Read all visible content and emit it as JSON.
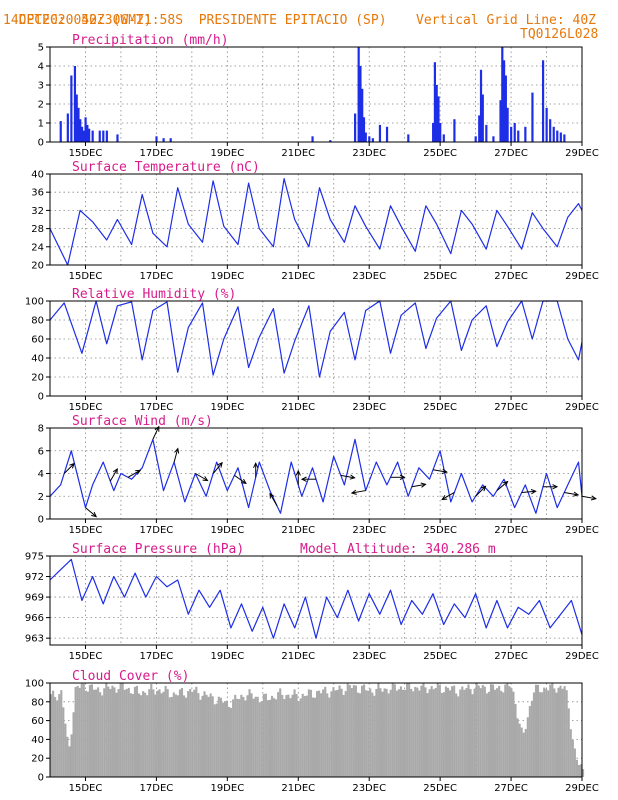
{
  "header": {
    "source": "CPTEC:",
    "coords": "052:30W-21:58S",
    "station": "PRESIDENTE EPITACIO (SP)",
    "init": "14DEC2020 40Z (GMT)",
    "grid_note": "Vertical Grid Line: 40Z",
    "code": "TQ0126L028"
  },
  "colors": {
    "header": "#e8780a",
    "title": "#d81b8c",
    "line": "#1e2ee6",
    "bar": "#1e2ee6",
    "cloud": "#a9a9a9",
    "arrow": "#000000"
  },
  "x_axis": {
    "labels": [
      "15DEC",
      "17DEC",
      "19DEC",
      "21DEC",
      "23DEC",
      "25DEC",
      "27DEC",
      "29DEC"
    ],
    "label_days": [
      15,
      17,
      19,
      21,
      23,
      25,
      27,
      29
    ],
    "start_day": 14,
    "end_day": 29
  },
  "chart_data": [
    {
      "type": "bar",
      "title": "Precipitation (mm/h)",
      "ylim": [
        0,
        5
      ],
      "yticks": [
        0,
        1,
        2,
        3,
        4,
        5
      ],
      "grid": true,
      "x": [
        14.3,
        14.5,
        14.6,
        14.7,
        14.75,
        14.8,
        14.85,
        14.9,
        14.95,
        15.0,
        15.05,
        15.1,
        15.2,
        15.4,
        15.5,
        15.6,
        15.9,
        17.0,
        17.2,
        17.4,
        21.4,
        21.9,
        22.6,
        22.7,
        22.75,
        22.8,
        22.85,
        22.9,
        23.0,
        23.1,
        23.3,
        23.5,
        24.1,
        24.8,
        24.85,
        24.9,
        24.95,
        25.0,
        25.1,
        25.4,
        26.0,
        26.1,
        26.15,
        26.2,
        26.3,
        26.5,
        26.7,
        26.75,
        26.8,
        26.85,
        26.9,
        27.0,
        27.1,
        27.2,
        27.4,
        27.6,
        27.9,
        28.0,
        28.1,
        28.2,
        28.3,
        28.4,
        28.5
      ],
      "values": [
        1.1,
        1.5,
        3.5,
        4.0,
        2.5,
        1.8,
        1.2,
        0.8,
        0.6,
        1.3,
        0.9,
        0.7,
        0.6,
        0.6,
        0.6,
        0.6,
        0.4,
        0.3,
        0.2,
        0.2,
        0.3,
        0.1,
        1.5,
        5.0,
        4.0,
        2.8,
        1.3,
        0.5,
        0.3,
        0.2,
        0.9,
        0.8,
        0.4,
        1.0,
        4.2,
        3.0,
        2.4,
        1.0,
        0.4,
        1.2,
        0.3,
        1.4,
        3.8,
        2.5,
        0.9,
        0.3,
        2.2,
        5.0,
        4.3,
        3.5,
        1.8,
        0.8,
        1.0,
        0.6,
        0.8,
        2.6,
        4.3,
        1.8,
        1.2,
        0.8,
        0.6,
        0.5,
        0.4
      ]
    },
    {
      "type": "line",
      "title": "Surface Temperature (nC)",
      "ylim": [
        20,
        40
      ],
      "yticks": [
        20,
        24,
        28,
        32,
        36,
        40
      ],
      "grid": true,
      "x": [
        14.0,
        14.5,
        14.85,
        15.2,
        15.6,
        15.9,
        16.3,
        16.6,
        16.9,
        17.3,
        17.6,
        17.9,
        18.3,
        18.6,
        18.9,
        19.3,
        19.6,
        19.9,
        20.3,
        20.6,
        20.9,
        21.3,
        21.6,
        21.9,
        22.3,
        22.6,
        22.9,
        23.3,
        23.6,
        23.9,
        24.3,
        24.6,
        24.9,
        25.3,
        25.6,
        25.9,
        26.3,
        26.6,
        26.9,
        27.3,
        27.6,
        27.9,
        28.3,
        28.6,
        28.9,
        29.0
      ],
      "values": [
        28.0,
        20.0,
        32.0,
        29.5,
        25.5,
        30.0,
        24.5,
        35.5,
        27.0,
        24.0,
        37.0,
        29.0,
        25.0,
        38.5,
        28.5,
        24.5,
        38.0,
        28.0,
        24.0,
        39.0,
        30.0,
        24.0,
        37.0,
        30.0,
        25.0,
        33.0,
        28.5,
        23.5,
        33.0,
        28.5,
        23.0,
        33.0,
        29.0,
        22.5,
        32.0,
        29.0,
        23.5,
        32.0,
        28.5,
        23.5,
        31.5,
        28.0,
        24.0,
        30.5,
        33.5,
        32.0
      ]
    },
    {
      "type": "line",
      "title": "Relative Humidity (%)",
      "ylim": [
        0,
        100
      ],
      "yticks": [
        0,
        20,
        40,
        60,
        80,
        100
      ],
      "grid": true,
      "x": [
        14.0,
        14.4,
        14.9,
        15.3,
        15.6,
        15.9,
        16.3,
        16.6,
        16.9,
        17.3,
        17.6,
        17.9,
        18.3,
        18.6,
        18.9,
        19.3,
        19.6,
        19.9,
        20.3,
        20.6,
        20.9,
        21.3,
        21.6,
        21.9,
        22.3,
        22.6,
        22.9,
        23.3,
        23.6,
        23.9,
        24.3,
        24.6,
        24.9,
        25.3,
        25.6,
        25.9,
        26.3,
        26.6,
        26.9,
        27.3,
        27.6,
        27.9,
        28.3,
        28.6,
        28.9,
        29.0
      ],
      "values": [
        80,
        98,
        45,
        100,
        55,
        95,
        99,
        38,
        90,
        99,
        25,
        72,
        98,
        22,
        60,
        94,
        30,
        62,
        92,
        24,
        58,
        95,
        20,
        68,
        88,
        38,
        90,
        100,
        45,
        85,
        98,
        50,
        82,
        100,
        48,
        80,
        95,
        52,
        78,
        100,
        60,
        100,
        100,
        60,
        38,
        57
      ]
    },
    {
      "type": "line",
      "title": "Surface Wind (m/s)",
      "ylim": [
        0,
        8
      ],
      "yticks": [
        0,
        2,
        4,
        6,
        8
      ],
      "grid": true,
      "x": [
        14.0,
        14.3,
        14.6,
        14.8,
        15.0,
        15.2,
        15.5,
        15.8,
        16.0,
        16.3,
        16.6,
        16.9,
        17.2,
        17.5,
        17.8,
        18.1,
        18.4,
        18.7,
        19.0,
        19.3,
        19.6,
        19.9,
        20.2,
        20.5,
        20.8,
        21.1,
        21.4,
        21.7,
        22.0,
        22.3,
        22.6,
        22.9,
        23.2,
        23.5,
        23.8,
        24.1,
        24.4,
        24.7,
        25.0,
        25.3,
        25.6,
        25.9,
        26.2,
        26.5,
        26.8,
        27.1,
        27.4,
        27.7,
        28.0,
        28.3,
        28.6,
        28.9,
        29.0
      ],
      "values": [
        2.0,
        3.0,
        6.0,
        3.5,
        1.0,
        3.0,
        5.0,
        2.5,
        4.0,
        3.5,
        4.5,
        7.0,
        2.5,
        5.0,
        1.5,
        4.0,
        2.0,
        5.0,
        2.5,
        4.5,
        1.0,
        5.0,
        2.5,
        0.5,
        5.0,
        2.0,
        4.5,
        1.5,
        5.5,
        3.0,
        7.0,
        2.5,
        5.0,
        3.0,
        5.0,
        2.0,
        4.5,
        3.5,
        6.0,
        1.5,
        4.0,
        1.5,
        3.0,
        2.0,
        3.5,
        1.0,
        3.0,
        0.5,
        4.0,
        1.0,
        3.0,
        5.0,
        2.0
      ],
      "arrows": {
        "x": [
          14.4,
          15.0,
          15.7,
          16.2,
          16.9,
          17.5,
          18.1,
          18.6,
          19.2,
          19.8,
          20.4,
          21.0,
          21.5,
          22.2,
          22.9,
          23.6,
          24.2,
          24.8,
          25.4,
          26.0,
          26.6,
          27.3,
          27.9,
          28.5,
          29.0
        ],
        "angle_deg": [
          45,
          -40,
          60,
          30,
          65,
          75,
          -30,
          50,
          -35,
          90,
          120,
          90,
          180,
          -10,
          -170,
          0,
          10,
          -10,
          -150,
          45,
          40,
          5,
          0,
          -10,
          -10
        ]
      }
    },
    {
      "type": "line",
      "title": "Surface Pressure (hPa)",
      "subtitle": "Model Altitude: 340.286 m",
      "ylim": [
        962,
        975
      ],
      "yticks": [
        963,
        966,
        969,
        972,
        975
      ],
      "grid": true,
      "x": [
        14.0,
        14.3,
        14.6,
        14.9,
        15.2,
        15.5,
        15.8,
        16.1,
        16.4,
        16.7,
        17.0,
        17.3,
        17.6,
        17.9,
        18.2,
        18.5,
        18.8,
        19.1,
        19.4,
        19.7,
        20.0,
        20.3,
        20.6,
        20.9,
        21.2,
        21.5,
        21.8,
        22.1,
        22.4,
        22.7,
        23.0,
        23.3,
        23.6,
        23.9,
        24.2,
        24.5,
        24.8,
        25.1,
        25.4,
        25.7,
        26.0,
        26.3,
        26.6,
        26.9,
        27.2,
        27.5,
        27.8,
        28.1,
        28.4,
        28.7,
        29.0
      ],
      "values": [
        971.5,
        973.0,
        974.5,
        968.5,
        972.0,
        968.0,
        972.0,
        969.0,
        972.5,
        969.0,
        972.0,
        970.5,
        971.5,
        966.5,
        970.0,
        967.5,
        970.0,
        964.5,
        968.0,
        964.0,
        967.5,
        963.0,
        968.0,
        964.5,
        969.0,
        963.0,
        969.0,
        966.0,
        970.0,
        965.5,
        969.5,
        966.5,
        970.0,
        965.0,
        968.5,
        966.5,
        969.5,
        965.0,
        968.0,
        966.0,
        969.5,
        964.5,
        968.5,
        964.5,
        967.5,
        966.5,
        968.5,
        964.5,
        966.5,
        968.5,
        963.5
      ]
    },
    {
      "type": "area",
      "title": "Cloud Cover (%)",
      "ylim": [
        0,
        100
      ],
      "yticks": [
        0,
        20,
        40,
        60,
        80,
        100
      ],
      "grid": true,
      "x": [
        14.0,
        14.3,
        14.5,
        14.7,
        15.0,
        15.3,
        15.6,
        16.0,
        16.5,
        17.0,
        17.5,
        18.0,
        18.5,
        19.0,
        19.5,
        20.0,
        20.5,
        21.0,
        21.5,
        22.0,
        22.5,
        23.0,
        23.5,
        24.0,
        24.5,
        25.0,
        25.5,
        26.0,
        26.5,
        27.0,
        27.3,
        27.6,
        28.0,
        28.5,
        28.8,
        29.0
      ],
      "values": [
        85,
        90,
        25,
        95,
        97,
        92,
        95,
        96,
        90,
        93,
        88,
        92,
        85,
        78,
        88,
        83,
        88,
        86,
        90,
        92,
        96,
        92,
        94,
        96,
        95,
        95,
        92,
        96,
        94,
        97,
        40,
        92,
        95,
        96,
        20,
        5
      ]
    }
  ]
}
